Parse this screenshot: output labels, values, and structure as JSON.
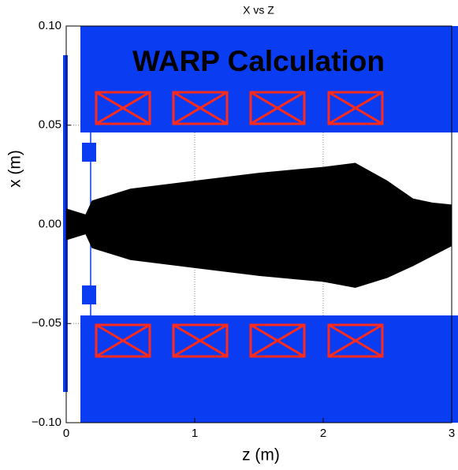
{
  "chart_data": {
    "type": "area",
    "title": "X vs Z",
    "annotation": "WARP Calculation",
    "x_label": "z (m)",
    "y_label": "x (m)",
    "x": [
      0,
      0.1,
      0.15,
      0.2,
      0.5,
      1.0,
      1.5,
      2.0,
      2.25,
      2.5,
      2.7,
      2.85,
      3.0
    ],
    "upper": [
      0.008,
      0.006,
      0.005,
      0.012,
      0.018,
      0.022,
      0.026,
      0.029,
      0.031,
      0.022,
      0.013,
      0.011,
      0.01
    ],
    "lower": [
      -0.008,
      -0.006,
      -0.005,
      -0.012,
      -0.018,
      -0.022,
      -0.026,
      -0.029,
      -0.032,
      -0.027,
      -0.021,
      -0.016,
      -0.011
    ],
    "color": "#000000",
    "xlim": [
      0,
      3
    ],
    "ylim": [
      -0.1,
      0.1
    ],
    "xticks": [
      0,
      1,
      2,
      3
    ],
    "yticks": [
      {
        "value": -0.1,
        "label": "−0.10"
      },
      {
        "value": -0.05,
        "label": "−0.05"
      },
      {
        "value": 0,
        "label": "0.00"
      },
      {
        "value": 0.05,
        "label": "0.05"
      },
      {
        "value": 0.1,
        "label": "0.10"
      }
    ],
    "grid": true
  }
}
